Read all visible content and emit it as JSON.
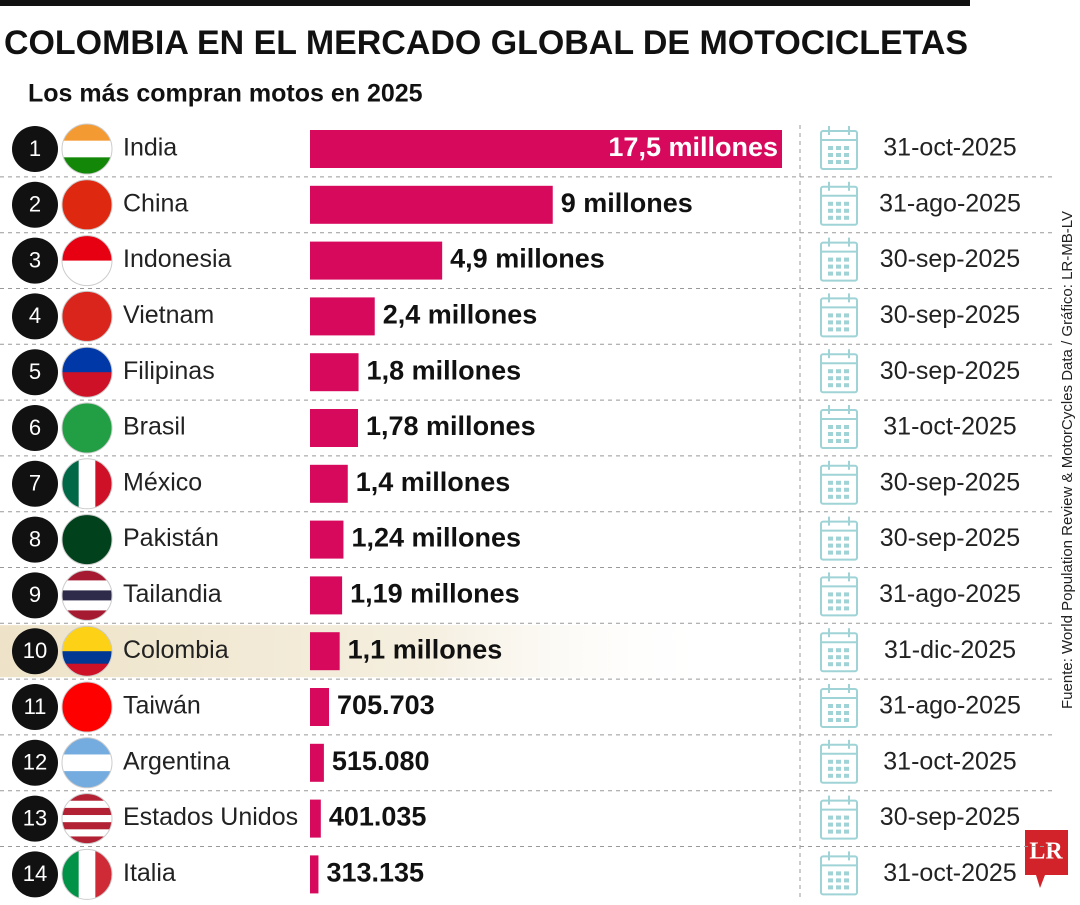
{
  "chart_data": {
    "type": "bar",
    "title": "COLOMBIA EN EL MERCADO GLOBAL DE MOTOCICLETAS",
    "subtitle": "Los más compran motos en 2025",
    "ranks": [
      1,
      2,
      3,
      4,
      5,
      6,
      7,
      8,
      9,
      10,
      11,
      12,
      13,
      14
    ],
    "categories": [
      "India",
      "China",
      "Indonesia",
      "Vietnam",
      "Filipinas",
      "Brasil",
      "México",
      "Pakistán",
      "Tailandia",
      "Colombia",
      "Taiwán",
      "Argentina",
      "Estados Unidos",
      "Italia"
    ],
    "values": [
      17500000,
      9000000,
      4900000,
      2400000,
      1800000,
      1780000,
      1400000,
      1240000,
      1190000,
      1100000,
      705703,
      515080,
      401035,
      313135
    ],
    "value_labels": [
      "17,5 millones",
      "9 millones",
      "4,9 millones",
      "2,4 millones",
      "1,8 millones",
      "1,78 millones",
      "1,4 millones",
      "1,24 millones",
      "1,19 millones",
      "1,1 millones",
      "705.703",
      "515.080",
      "401.035",
      "313.135"
    ],
    "dates": [
      "31-oct-2025",
      "31-ago-2025",
      "30-sep-2025",
      "30-sep-2025",
      "30-sep-2025",
      "31-oct-2025",
      "30-sep-2025",
      "30-sep-2025",
      "31-ago-2025",
      "31-dic-2025",
      "31-ago-2025",
      "31-oct-2025",
      "30-sep-2025",
      "31-oct-2025"
    ],
    "color": "#d6095d",
    "highlight": "Colombia",
    "source": "Fuente: World Population Review & MotorCycles Data / Gráfico: LR-MB-LV",
    "logo": "LR"
  }
}
